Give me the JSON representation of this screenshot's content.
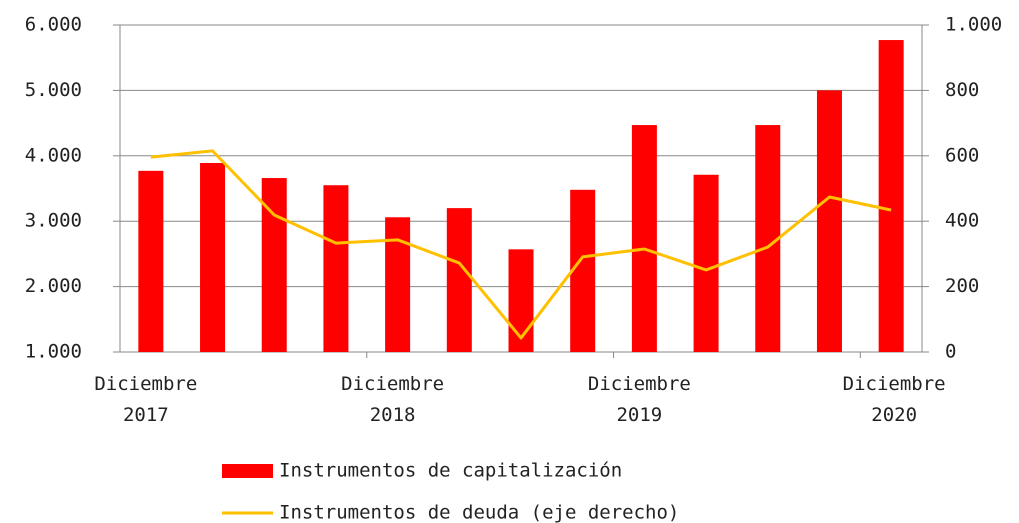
{
  "chart_data": {
    "type": "bar_line",
    "categories": [
      "Diciembre 2017",
      null,
      null,
      null,
      "Diciembre 2018",
      null,
      null,
      null,
      "Diciembre 2019",
      null,
      null,
      null,
      "Diciembre 2020"
    ],
    "series": [
      {
        "name": "Instrumentos de capitalización",
        "type": "bar",
        "color": "#ff0000",
        "values": [
          3770,
          3890,
          3660,
          3550,
          3060,
          3200,
          2570,
          3480,
          4470,
          3710,
          4470,
          5000,
          5770
        ]
      },
      {
        "name": "Instrumentos de deuda (eje derecho)",
        "type": "line",
        "axis": "y2",
        "color": "#ffc000",
        "values": [
          596,
          615,
          419,
          333,
          343,
          272,
          43,
          291,
          315,
          251,
          321,
          474,
          434
        ]
      }
    ],
    "ylim": [
      1000,
      6000
    ],
    "yticks": [
      {
        "value": 1000,
        "label": "1.000"
      },
      {
        "value": 2000,
        "label": "2.000"
      },
      {
        "value": 3000,
        "label": "3.000"
      },
      {
        "value": 4000,
        "label": "4.000"
      },
      {
        "value": 5000,
        "label": "5.000"
      },
      {
        "value": 6000,
        "label": "6.000"
      }
    ],
    "y2lim": [
      0,
      1000
    ],
    "y2ticks": [
      0,
      200,
      400,
      600,
      800,
      {
        "value": 1000,
        "label": "1.000"
      }
    ],
    "grid": true
  }
}
